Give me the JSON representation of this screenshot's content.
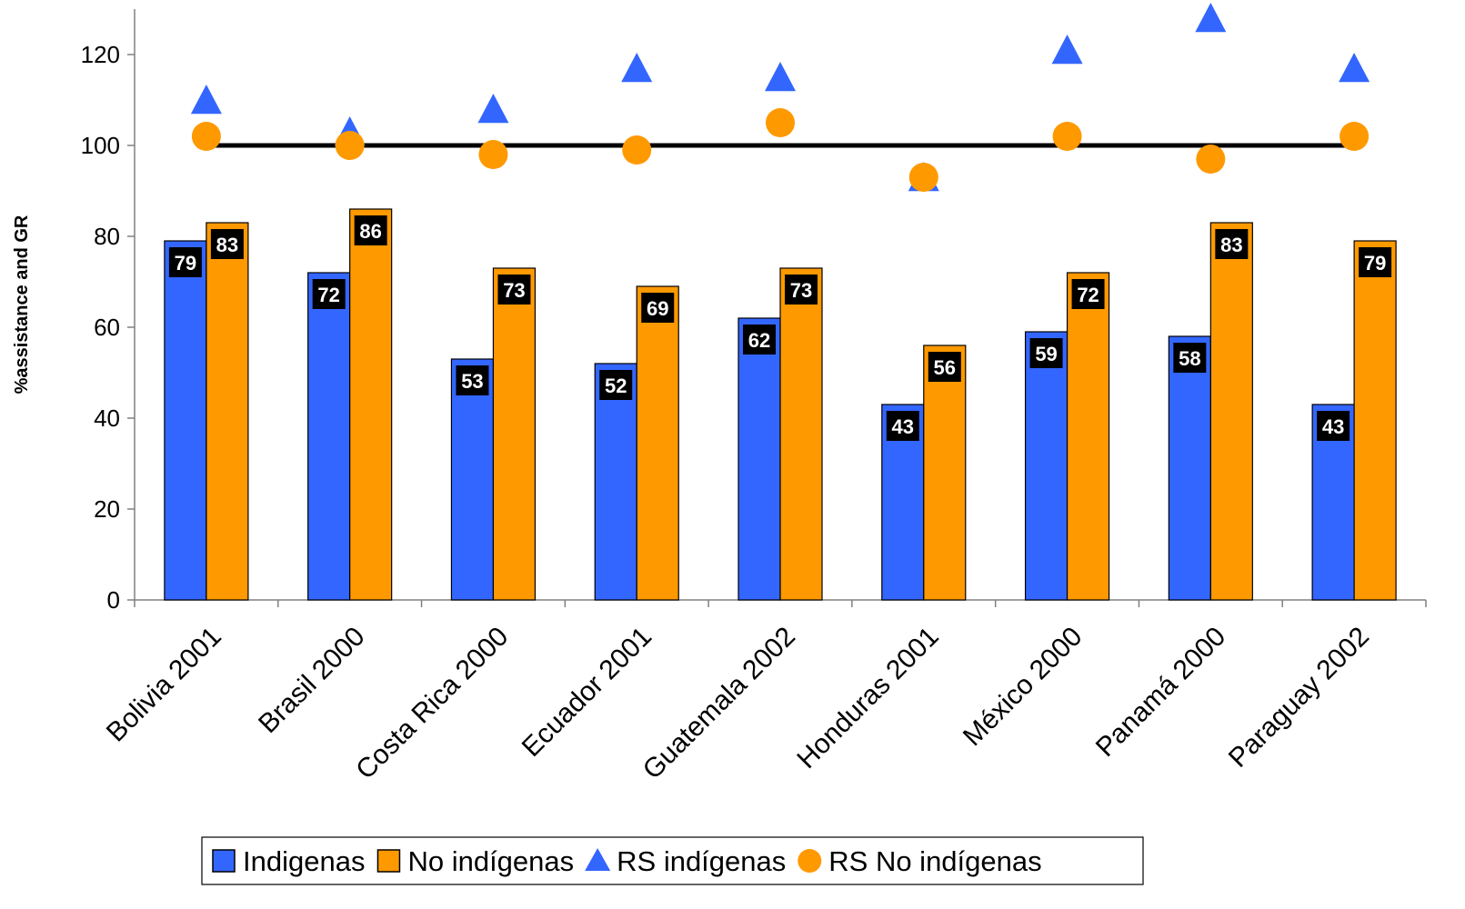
{
  "chart_data": {
    "type": "bar",
    "title": "",
    "xlabel": "",
    "ylabel": "%assistance and GR",
    "ylim": [
      0,
      130
    ],
    "yticks": [
      0,
      20,
      40,
      60,
      80,
      100,
      120
    ],
    "categories": [
      "Bolivia 2001",
      "Brasil 2000",
      "Costa Rica 2000",
      "Ecuador 2001",
      "Guatemala 2002",
      "Honduras 2001",
      "México 2000",
      "Panamá 2000",
      "Paraguay 2002"
    ],
    "series": [
      {
        "name": "Indigenas",
        "kind": "bar",
        "color": "#3366ff",
        "values": [
          79,
          72,
          53,
          52,
          62,
          43,
          59,
          58,
          43
        ],
        "labels": [
          "79",
          "72",
          "53",
          "52",
          "62",
          "43",
          "59",
          "58",
          "43"
        ]
      },
      {
        "name": "No indígenas",
        "kind": "bar",
        "color": "#ff9900",
        "values": [
          83,
          86,
          73,
          69,
          73,
          56,
          72,
          83,
          79
        ],
        "labels": [
          "83",
          "86",
          "73",
          "69",
          "73",
          "56",
          "72",
          "83",
          "79"
        ]
      },
      {
        "name": "RS indígenas",
        "kind": "triangle",
        "color": "#3366ff",
        "values": [
          110,
          103,
          108,
          117,
          115,
          93,
          121,
          128,
          117
        ]
      },
      {
        "name": "RS No indígenas",
        "kind": "circle",
        "color": "#ff9900",
        "values": [
          102,
          100,
          98,
          99,
          105,
          93,
          102,
          97,
          102
        ]
      }
    ],
    "reference_line": {
      "value": 100,
      "color": "#000000"
    },
    "grid": false,
    "legend_position": "bottom"
  }
}
